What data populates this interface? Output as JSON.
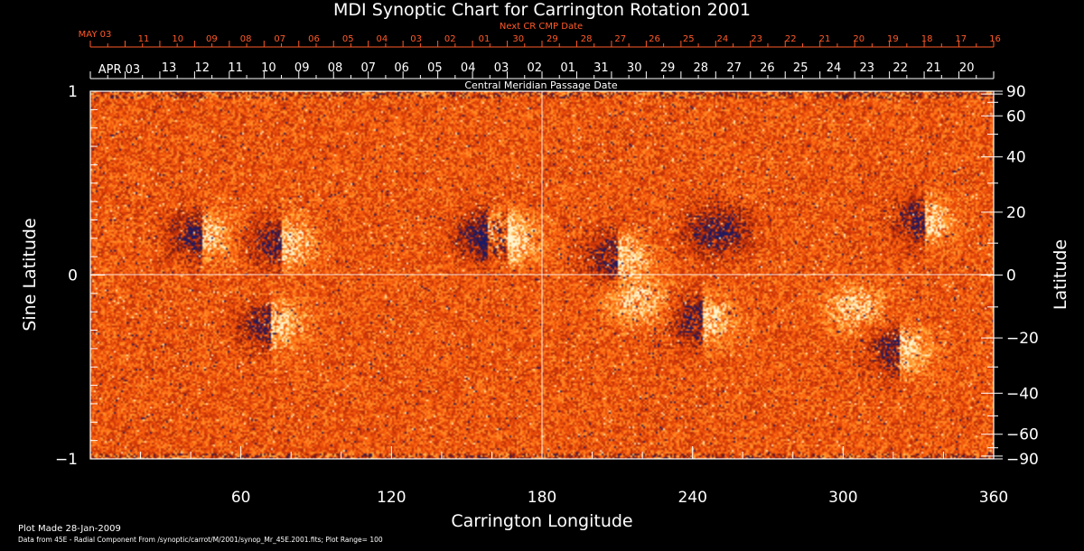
{
  "chart_data": {
    "type": "heatmap",
    "title": "MDI Synoptic Chart for Carrington Rotation 2001",
    "xlabel": "Carrington Longitude",
    "ylabel_left": "Sine Latitude",
    "ylabel_right": "Latitude",
    "xlim": [
      0,
      360
    ],
    "ylim": [
      -1,
      1
    ],
    "x_ticks": [
      60,
      120,
      180,
      240,
      300,
      360
    ],
    "y_ticks_left": [
      {
        "value": -1,
        "label": "−1"
      },
      {
        "value": 0,
        "label": "0"
      },
      {
        "value": 1,
        "label": "1"
      }
    ],
    "y_ticks_right": [
      90,
      60,
      40,
      20,
      0,
      -20,
      -40,
      -60,
      -90
    ],
    "y_ticks_right_labels": [
      "90",
      "60",
      "40",
      "20",
      "0",
      "−20",
      "−40",
      "−60",
      "−90"
    ],
    "grid": "crosshair at longitude 180 and sine latitude 0",
    "colormap": [
      "#1a1a66",
      "#7a1a10",
      "#d83a08",
      "#ff6a10",
      "#ffb040",
      "#fff6d0"
    ],
    "next_cr_axis": {
      "title": "Next CR CMP Date",
      "start_label": "MAY 03",
      "labels": [
        "11",
        "10",
        "09",
        "08",
        "07",
        "06",
        "05",
        "04",
        "03",
        "02",
        "01",
        "30",
        "29",
        "28",
        "27",
        "26",
        "25",
        "24",
        "23",
        "22",
        "21",
        "20",
        "19",
        "18",
        "17",
        "16"
      ],
      "color": "#ff5a28"
    },
    "cmp_axis": {
      "title": "Central Meridian Passage Date",
      "start_label": "APR 03",
      "labels": [
        "13",
        "12",
        "11",
        "10",
        "09",
        "08",
        "07",
        "06",
        "05",
        "04",
        "03",
        "02",
        "01",
        "31",
        "30",
        "29",
        "28",
        "27",
        "26",
        "25",
        "24",
        "23",
        "22",
        "21",
        "20"
      ]
    },
    "active_regions": [
      {
        "lon": 44,
        "sinlat": 0.22,
        "polarity": "mixed"
      },
      {
        "lon": 76,
        "sinlat": 0.18,
        "polarity": "mixed"
      },
      {
        "lon": 72,
        "sinlat": -0.27,
        "polarity": "mixed"
      },
      {
        "lon": 158,
        "sinlat": 0.22,
        "polarity": "mixed"
      },
      {
        "lon": 166,
        "sinlat": 0.2,
        "polarity": "mixed"
      },
      {
        "lon": 210,
        "sinlat": 0.1,
        "polarity": "mixed"
      },
      {
        "lon": 218,
        "sinlat": -0.14,
        "polarity": "positive"
      },
      {
        "lon": 244,
        "sinlat": -0.24,
        "polarity": "mixed"
      },
      {
        "lon": 250,
        "sinlat": 0.24,
        "polarity": "negative"
      },
      {
        "lon": 304,
        "sinlat": -0.17,
        "polarity": "positive"
      },
      {
        "lon": 332,
        "sinlat": 0.3,
        "polarity": "mixed"
      },
      {
        "lon": 322,
        "sinlat": -0.4,
        "polarity": "mixed"
      }
    ]
  },
  "footer": {
    "plot_made": "Plot Made 28-Jan-2009",
    "source": "Data from 45E - Radial Component From /synoptic/carrot/M/2001/synop_Mr_45E.2001.fits; Plot Range= 100"
  }
}
